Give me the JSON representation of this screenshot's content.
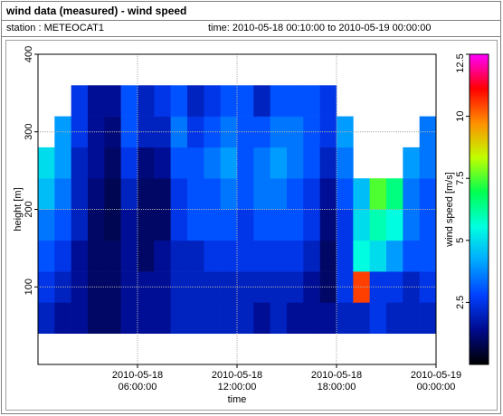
{
  "header": {
    "title": "wind data (measured) - wind speed",
    "station": "station : METEOCAT1",
    "time": "time: 2010-05-18 00:10:00 to 2010-05-19 00:00:00"
  },
  "chart_data": {
    "type": "heatmap",
    "xlabel": "time",
    "ylabel": "height [m]",
    "zlabel": "wind speed [m/s]",
    "x": [
      "2010-05-18 00:30:00",
      "2010-05-18 01:30:00",
      "2010-05-18 02:30:00",
      "2010-05-18 03:30:00",
      "2010-05-18 04:30:00",
      "2010-05-18 05:30:00",
      "2010-05-18 06:30:00",
      "2010-05-18 07:30:00",
      "2010-05-18 08:30:00",
      "2010-05-18 09:30:00",
      "2010-05-18 10:30:00",
      "2010-05-18 11:30:00",
      "2010-05-18 12:30:00",
      "2010-05-18 13:30:00",
      "2010-05-18 14:30:00",
      "2010-05-18 15:30:00",
      "2010-05-18 16:30:00",
      "2010-05-18 17:30:00",
      "2010-05-18 18:30:00",
      "2010-05-18 19:30:00",
      "2010-05-18 20:30:00",
      "2010-05-18 21:30:00",
      "2010-05-18 22:30:00",
      "2010-05-18 23:30:00"
    ],
    "y": [
      60,
      100,
      140,
      180,
      220,
      260,
      300,
      340
    ],
    "z": [
      [
        2,
        2.5,
        3,
        3.5,
        4.5,
        5,
        null,
        null
      ],
      [
        1.5,
        2,
        2.5,
        3,
        3.5,
        4,
        4,
        null
      ],
      [
        1.5,
        1.5,
        1.5,
        2,
        2,
        2,
        2.5,
        2.5
      ],
      [
        1,
        1,
        1,
        1,
        1.2,
        1.5,
        1.5,
        1.5
      ],
      [
        1,
        1,
        1,
        0.8,
        0.8,
        1,
        1.2,
        1.5
      ],
      [
        1.5,
        1.5,
        1.5,
        1.5,
        2,
        2.5,
        3,
        3
      ],
      [
        1.5,
        1.5,
        1,
        1,
        1,
        1.2,
        2,
        2
      ],
      [
        1.5,
        1.5,
        1.5,
        1,
        1,
        1.5,
        2,
        2.5
      ],
      [
        2,
        2,
        2,
        2.5,
        2.5,
        3,
        3.5,
        3
      ],
      [
        2,
        2,
        2,
        3,
        3,
        3,
        2.5,
        2
      ],
      [
        2,
        2,
        2.5,
        3,
        3,
        3.5,
        3,
        2.5
      ],
      [
        2,
        2,
        2.5,
        3,
        3.5,
        4,
        3.5,
        3
      ],
      [
        2,
        2,
        2.5,
        2.5,
        3,
        3,
        3,
        3
      ],
      [
        1.5,
        2,
        2.5,
        3,
        3.5,
        3.5,
        3,
        2
      ],
      [
        2,
        2,
        2.5,
        3,
        3.5,
        4,
        3.5,
        3
      ],
      [
        1.5,
        2,
        2.5,
        3,
        3,
        3.5,
        3.5,
        3
      ],
      [
        1.5,
        1.5,
        2,
        2.5,
        2.5,
        3,
        3,
        3
      ],
      [
        1.5,
        1,
        1,
        1.2,
        1.5,
        2,
        2.5,
        2.5
      ],
      [
        2,
        2.5,
        2.5,
        2.5,
        3,
        3.5,
        4,
        null
      ],
      [
        2,
        10.5,
        5.5,
        5,
        4.5,
        null,
        null,
        null
      ],
      [
        2.5,
        2.5,
        5,
        6,
        7.5,
        null,
        null,
        null
      ],
      [
        2,
        2.5,
        4,
        5.5,
        6.5,
        null,
        null,
        null
      ],
      [
        2,
        2,
        3,
        3.5,
        3.5,
        4,
        null,
        null
      ],
      [
        2,
        2.5,
        3,
        3,
        3,
        3.5,
        3.5,
        null
      ]
    ],
    "xlim": [
      "2010-05-18 00:00:00",
      "2010-05-19 00:00:00"
    ],
    "xticks": [
      {
        "value": "2010-05-18 06:00:00",
        "label": "2010-05-18 06:00:00"
      },
      {
        "value": "2010-05-18 12:00:00",
        "label": "2010-05-18 12:00:00"
      },
      {
        "value": "2010-05-18 18:00:00",
        "label": "2010-05-18 18:00:00"
      },
      {
        "value": "2010-05-19 00:00:00",
        "label": "2010-05-19 00:00:00"
      }
    ],
    "ylim": [
      0,
      400
    ],
    "yticks": [
      100,
      200,
      300,
      400
    ],
    "zlim": [
      0,
      12.5
    ],
    "zticks": [
      2.5,
      5,
      7.5,
      10,
      12.5
    ],
    "colorscale": [
      "#000000",
      "#000a8c",
      "#0040ff",
      "#00a8ff",
      "#00ffe0",
      "#00ff50",
      "#c0ff00",
      "#ff9000",
      "#ff0000",
      "#ff00ff"
    ],
    "grid": true
  }
}
